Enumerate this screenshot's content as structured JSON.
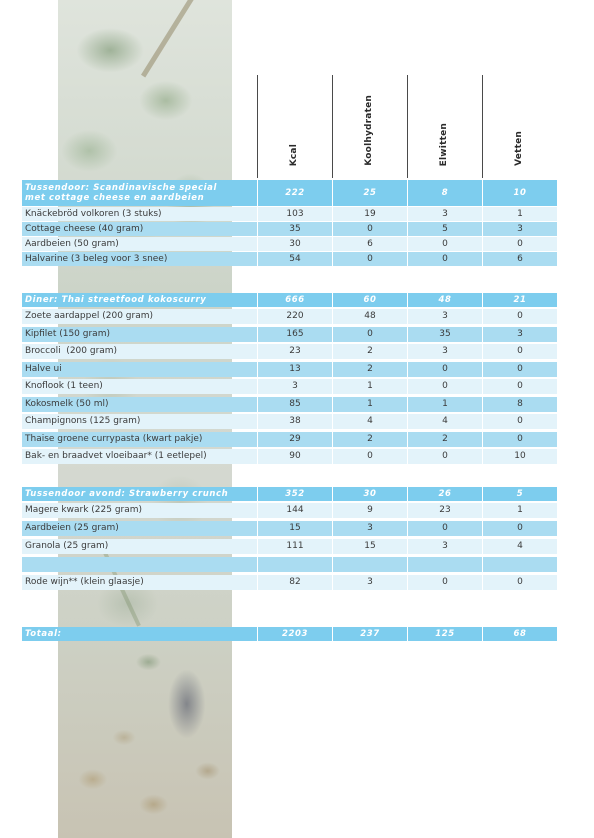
{
  "columns": {
    "kcal": "Kcal",
    "carbs": "Koolhydraten",
    "protein": "Elwitten",
    "fat": "Vetten"
  },
  "sections": [
    {
      "title": "Tussendoor: Scandinavische special met cottage cheese en aardbeien",
      "totals": [
        "222",
        "25",
        "8",
        "10"
      ],
      "items": [
        {
          "name": "Knäckebröd volkoren (3 stuks)",
          "values": [
            "103",
            "19",
            "3",
            "1"
          ]
        },
        {
          "name": "Cottage cheese (40 gram)",
          "values": [
            "35",
            "0",
            "5",
            "3"
          ]
        },
        {
          "name": "Aardbeien (50 gram)",
          "values": [
            "30",
            "6",
            "0",
            "0"
          ]
        },
        {
          "name": "Halvarine (3 beleg voor 3 snee)",
          "values": [
            "54",
            "0",
            "0",
            "6"
          ]
        }
      ]
    },
    {
      "title": "Diner: Thai streetfood kokoscurry",
      "totals": [
        "666",
        "60",
        "48",
        "21"
      ],
      "items": [
        {
          "name": "Zoete aardappel (200 gram)",
          "values": [
            "220",
            "48",
            "3",
            "0"
          ]
        },
        {
          "name": "Kipfilet (150 gram)",
          "values": [
            "165",
            "0",
            "35",
            "3"
          ]
        },
        {
          "name": "Broccoli  (200 gram)",
          "values": [
            "23",
            "2",
            "3",
            "0"
          ]
        },
        {
          "name": "Halve ui",
          "values": [
            "13",
            "2",
            "0",
            "0"
          ]
        },
        {
          "name": "Knoflook (1 teen)",
          "values": [
            "3",
            "1",
            "0",
            "0"
          ]
        },
        {
          "name": "Kokosmelk (50 ml)",
          "values": [
            "85",
            "1",
            "1",
            "8"
          ]
        },
        {
          "name": "Champignons (125 gram)",
          "values": [
            "38",
            "4",
            "4",
            "0"
          ]
        },
        {
          "name": "Thaise groene currypasta (kwart pakje)",
          "values": [
            "29",
            "2",
            "2",
            "0"
          ]
        },
        {
          "name": "Bak- en braadvet vloeibaar* (1 eetlepel)",
          "values": [
            "90",
            "0",
            "0",
            "10"
          ]
        }
      ]
    },
    {
      "title": "Tussendoor avond: Strawberry crunch",
      "totals": [
        "352",
        "30",
        "26",
        "5"
      ],
      "items": [
        {
          "name": "Magere kwark (225 gram)",
          "values": [
            "144",
            "9",
            "23",
            "1"
          ]
        },
        {
          "name": "Aardbeien (25 gram)",
          "values": [
            "15",
            "3",
            "0",
            "0"
          ]
        },
        {
          "name": "Granola (25 gram)",
          "values": [
            "111",
            "15",
            "3",
            "4"
          ]
        },
        {
          "name": "Rode wijn** (klein glaasje)",
          "values": [
            "82",
            "3",
            "0",
            "0"
          ]
        }
      ]
    }
  ],
  "total": {
    "label": "Totaal:",
    "values": [
      "2203",
      "237",
      "125",
      "68"
    ]
  },
  "colors": {
    "section": "#7dcdee",
    "row_blue": "#aadcf1",
    "row_light": "#e3f3fa"
  }
}
